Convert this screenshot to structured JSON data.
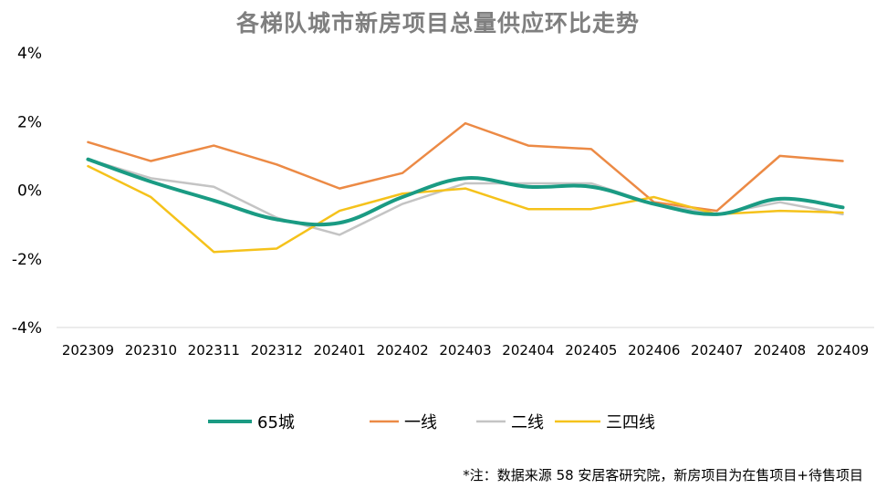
{
  "chart_data": {
    "type": "line",
    "title": "各梯队城市新房项目总量供应环比走势",
    "categories": [
      "202309",
      "202310",
      "202311",
      "202312",
      "202401",
      "202402",
      "202403",
      "202404",
      "202405",
      "202406",
      "202407",
      "202408",
      "202409"
    ],
    "y_ticks": [
      "4%",
      "2%",
      "0%",
      "-2%",
      "-4%"
    ],
    "ylim": [
      -4,
      4
    ],
    "unit": "%",
    "grid": false,
    "legend_position": "bottom",
    "series": [
      {
        "name": "65城",
        "color": "#1a9b83",
        "width": 4,
        "values": [
          0.9,
          0.25,
          -0.3,
          -0.85,
          -0.95,
          -0.2,
          0.35,
          0.1,
          0.1,
          -0.4,
          -0.7,
          -0.25,
          -0.5
        ]
      },
      {
        "name": "一线",
        "color": "#ec8a45",
        "width": 2.5,
        "values": [
          1.4,
          0.85,
          1.3,
          0.75,
          0.05,
          0.5,
          1.95,
          1.3,
          1.2,
          -0.35,
          -0.6,
          1.0,
          0.85
        ]
      },
      {
        "name": "二线",
        "color": "#c4c4c4",
        "width": 2.5,
        "values": [
          0.9,
          0.35,
          0.1,
          -0.8,
          -1.3,
          -0.4,
          0.2,
          0.2,
          0.2,
          -0.4,
          -0.7,
          -0.35,
          -0.7
        ]
      },
      {
        "name": "三四线",
        "color": "#f5c21b",
        "width": 2.5,
        "values": [
          0.7,
          -0.2,
          -1.8,
          -1.7,
          -0.6,
          -0.1,
          0.05,
          -0.55,
          -0.55,
          -0.2,
          -0.7,
          -0.6,
          -0.65
        ]
      }
    ]
  },
  "footnote": "*注：数据来源 58 安居客研究院，新房项目为在售项目+待售项目"
}
